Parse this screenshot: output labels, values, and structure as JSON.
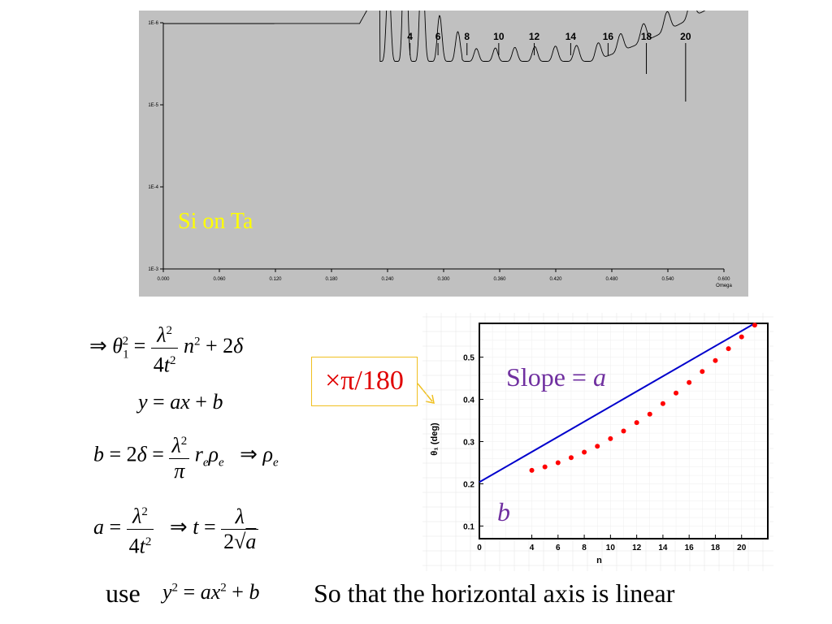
{
  "top_chart": {
    "chart_data": {
      "type": "line",
      "title": "",
      "xlabel": "Omega",
      "ylabel": "",
      "xlim": [
        0.0,
        0.6
      ],
      "ylim_log": [
        0.001,
        1e-06
      ],
      "y_log_scale": true,
      "y_inverted": true,
      "x_ticks": [
        "0.000",
        "0.060",
        "0.120",
        "0.180",
        "0.240",
        "0.300",
        "0.360",
        "0.420",
        "0.480",
        "0.540",
        "0.600"
      ],
      "y_ticks": [
        "1E-6",
        "1E-5",
        "1E-4",
        "1E-3"
      ],
      "annotation": "Si on Ta",
      "fringe_labels": [
        "4",
        "6",
        "8",
        "10",
        "12",
        "14",
        "16",
        "18",
        "20"
      ],
      "fringe_positions": [
        0.264,
        0.294,
        0.325,
        0.359,
        0.397,
        0.436,
        0.476,
        0.517,
        0.559
      ],
      "flat_level": 1e-06,
      "critical_angle": 0.22
    },
    "colors": {
      "background": "#c0c0c0",
      "line": "#000000",
      "annotation": "#ffff00"
    }
  },
  "equations": {
    "eq1": {
      "lhs": "⇒ θ",
      "sub": "1",
      "sup": "2",
      "eq": "=",
      "num": "λ²",
      "den": "4t²",
      "rest": "n² + 2δ"
    },
    "eq2": {
      "text": "y = ax + b"
    },
    "eq3": {
      "lhs": "b = 2δ =",
      "num": "λ²",
      "den": "π",
      "rest": "r",
      "rest_sub": "e",
      "rho": "ρ",
      "rho_sub": "e",
      "arrow": "⇒ ρ",
      "arrow_sub": "e"
    },
    "eq4": {
      "lhs": "a =",
      "num": "λ²",
      "den": "4t²",
      "arrow": "⇒ t =",
      "num2": "λ",
      "den2": "2√a"
    }
  },
  "callout": {
    "text": "×π/180"
  },
  "bottom_chart": {
    "chart_data": {
      "type": "scatter",
      "title": "",
      "xlabel": "n",
      "ylabel": "θ₁ (deg)",
      "xlim": [
        0,
        22
      ],
      "ylim": [
        0.07,
        0.58
      ],
      "x_ticks": [
        "0",
        "4",
        "6",
        "8",
        "10",
        "12",
        "14",
        "16",
        "18",
        "20"
      ],
      "x_tick_values": [
        0,
        4,
        6,
        8,
        10,
        12,
        14,
        16,
        18,
        20
      ],
      "y_ticks": [
        "0.1",
        "0.2",
        "0.3",
        "0.4",
        "0.5"
      ],
      "y_tick_values": [
        0.1,
        0.2,
        0.3,
        0.4,
        0.5
      ],
      "points": [
        [
          4,
          0.232
        ],
        [
          5,
          0.24
        ],
        [
          6,
          0.25
        ],
        [
          7,
          0.262
        ],
        [
          8,
          0.275
        ],
        [
          9,
          0.289
        ],
        [
          10,
          0.307
        ],
        [
          11,
          0.325
        ],
        [
          12,
          0.345
        ],
        [
          13,
          0.365
        ],
        [
          14,
          0.39
        ],
        [
          15,
          0.415
        ],
        [
          16,
          0.44
        ],
        [
          17,
          0.466
        ],
        [
          18,
          0.492
        ],
        [
          19,
          0.52
        ],
        [
          20,
          0.548
        ],
        [
          21,
          0.576
        ]
      ],
      "fit_line": [
        [
          0,
          0.204
        ],
        [
          21,
          0.58
        ]
      ],
      "slope_label": "Slope = ",
      "slope_var": "a",
      "intercept_label": "b"
    },
    "colors": {
      "points": "#ff0000",
      "line": "#0000cc",
      "label": "#7030a0"
    }
  },
  "bottom_text": {
    "use": "use",
    "eq": "y² = ax² + b",
    "rest": "So that the horizontal axis is linear"
  }
}
